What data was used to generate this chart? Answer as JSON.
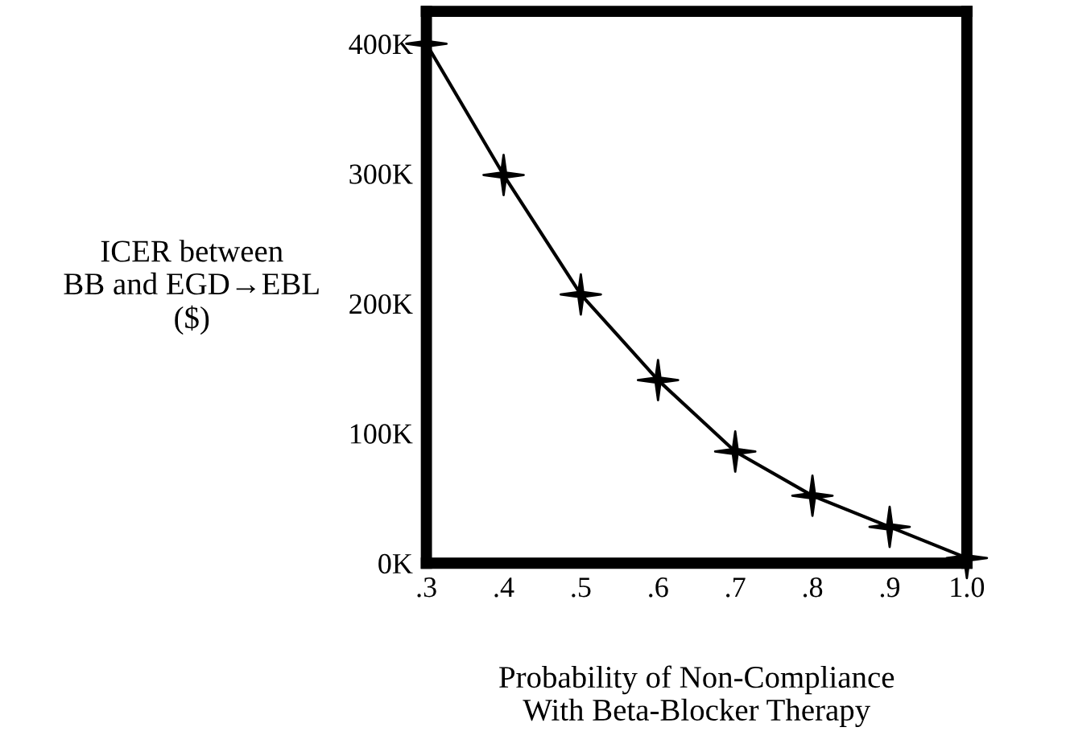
{
  "chart_data": {
    "type": "line",
    "xlabel": "Probability of Non-Compliance\nWith Beta-Blocker Therapy",
    "ylabel": "ICER between\nBB and EGD→EBL\n($)",
    "x": [
      0.3,
      0.4,
      0.5,
      0.6,
      0.7,
      0.8,
      0.9,
      1.0
    ],
    "series": [
      {
        "color": "#000000",
        "values": [
          400000,
          299000,
          207000,
          141000,
          86000,
          52000,
          28000,
          4000
        ]
      }
    ],
    "xlim": [
      0.3,
      1.0
    ],
    "xticks": [
      {
        "value": 0.3,
        "label": ".3"
      },
      {
        "value": 0.4,
        "label": ".4"
      },
      {
        "value": 0.5,
        "label": ".5"
      },
      {
        "value": 0.6,
        "label": ".6"
      },
      {
        "value": 0.7,
        "label": ".7"
      },
      {
        "value": 0.8,
        "label": ".8"
      },
      {
        "value": 0.9,
        "label": ".9"
      },
      {
        "value": 1.0,
        "label": "1.0"
      }
    ],
    "ylim": [
      0,
      425000
    ],
    "yticks": [
      {
        "value": 0,
        "label": "0K"
      },
      {
        "value": 100000,
        "label": "100K"
      },
      {
        "value": 200000,
        "label": "200K"
      },
      {
        "value": 300000,
        "label": "300K"
      },
      {
        "value": 400000,
        "label": "400K"
      }
    ],
    "marker": "star",
    "line_style": "solid",
    "grid": false,
    "legend": false
  }
}
